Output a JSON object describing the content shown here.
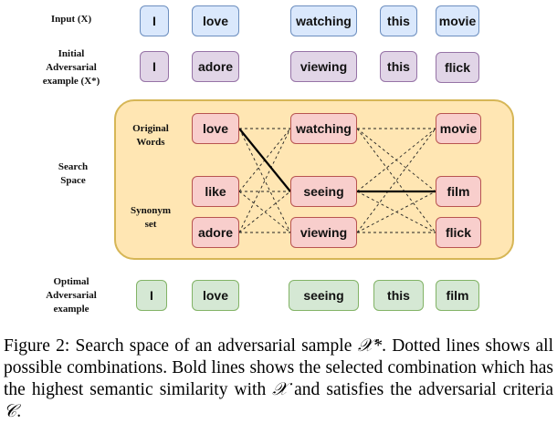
{
  "rows": {
    "input_label": "Input (X)",
    "initial_label_lines": [
      "Initial",
      "Adversarial",
      "example (X*)"
    ],
    "search_label_lines": [
      "Search",
      "Space"
    ],
    "original_words_label_lines": [
      "Original",
      "Words"
    ],
    "synonym_set_label_lines": [
      "Synonym",
      "set"
    ],
    "optimal_label_lines": [
      "Optimal",
      "Adversarial",
      "example"
    ]
  },
  "input_words": [
    "I",
    "love",
    "watching",
    "this",
    "movie"
  ],
  "initial_adv_words": [
    "I",
    "adore",
    "viewing",
    "this",
    "flick"
  ],
  "search_space": {
    "columns": [
      [
        "love",
        "like",
        "adore"
      ],
      [
        "watching",
        "seeing",
        "viewing"
      ],
      [
        "movie",
        "film",
        "flick"
      ]
    ],
    "selected_path": [
      "love",
      "seeing",
      "film"
    ]
  },
  "optimal_words": [
    "I",
    "love",
    "seeing",
    "this",
    "film"
  ],
  "colors": {
    "input": "#dae8fc",
    "initial": "#e1d5e7",
    "search_word": "#f8cecc",
    "optimal": "#d5e8d4",
    "search_panel": "#ffe6b3"
  },
  "caption": {
    "prefix": "Figure 2: Search space of an adversarial sample ",
    "x_star": "𝒳*",
    "mid1": ". Dotted lines shows all possible combinations. Bold lines shows the selected combination which has the highest semantic similarity with ",
    "x_sym": "𝒳",
    "mid2": " and satisfies the adversarial criteria ",
    "c_sym": "𝒞",
    "end": "."
  }
}
